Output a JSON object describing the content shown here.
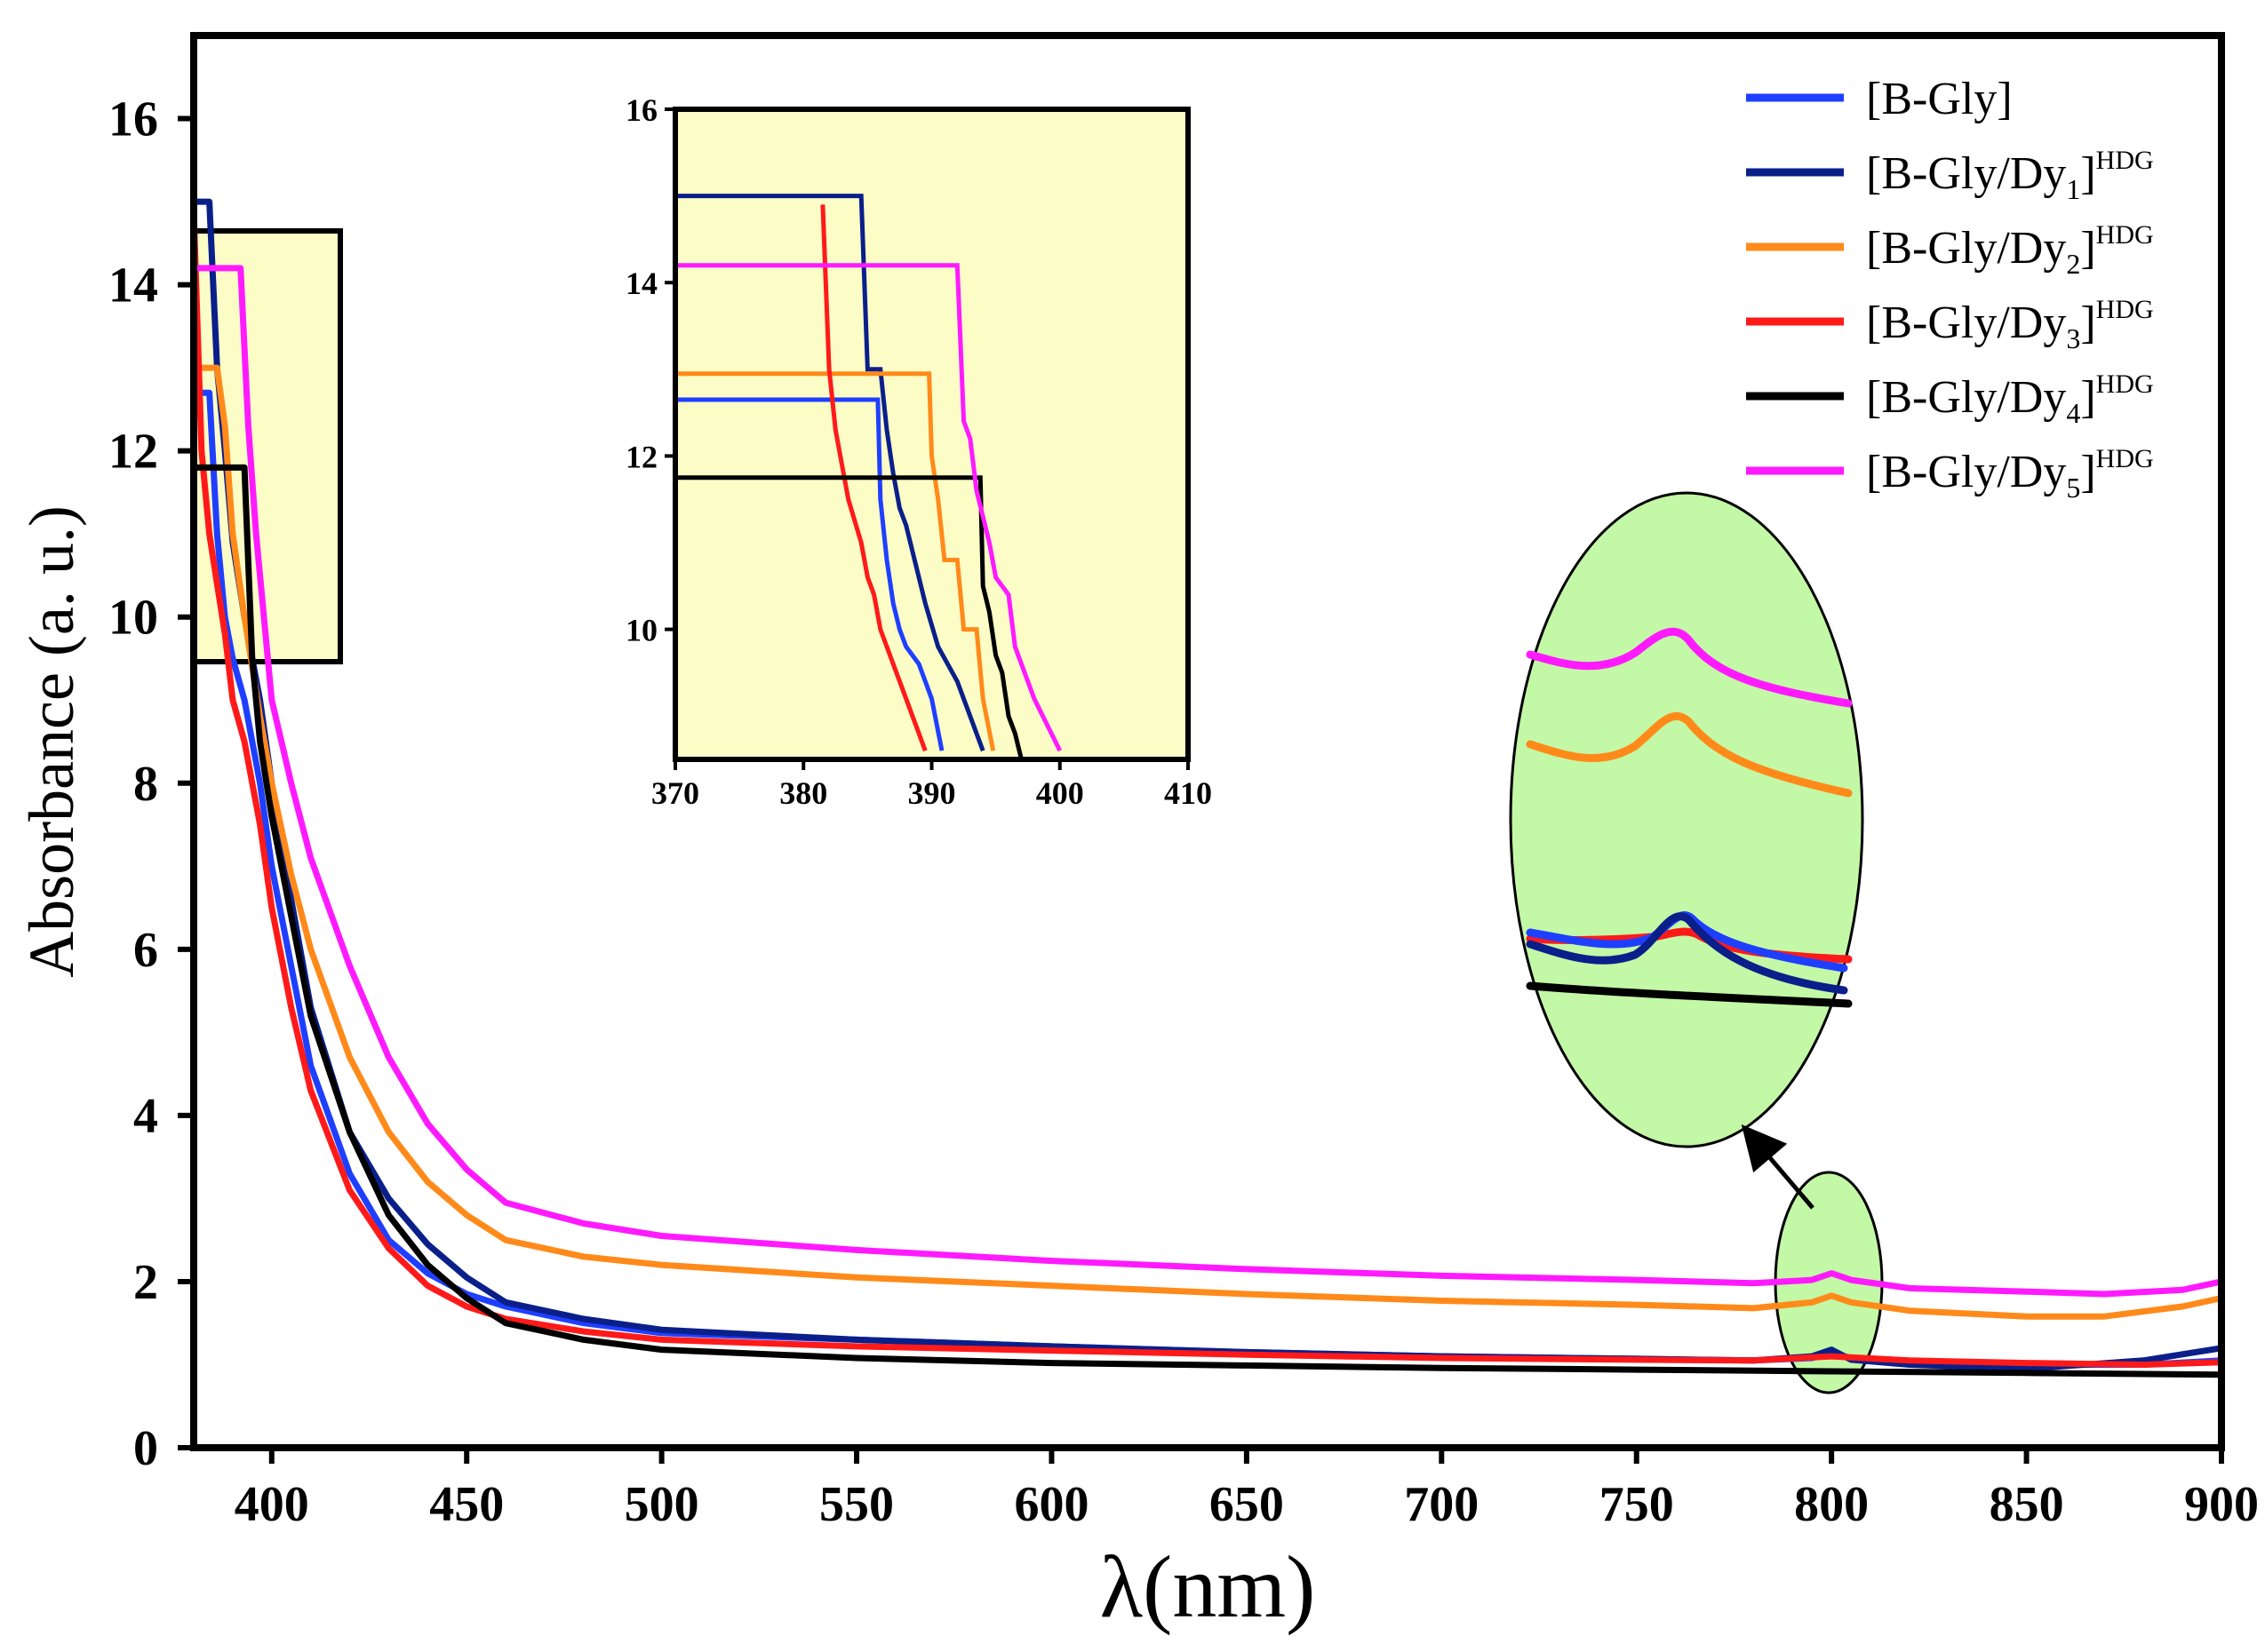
{
  "chart_data": {
    "type": "line",
    "title": "",
    "xlabel": "λ(nm)",
    "ylabel": "Absorbance (a. u.)",
    "xlim": [
      380,
      900
    ],
    "ylim": [
      0,
      17
    ],
    "x_ticks": [
      400,
      450,
      500,
      550,
      600,
      650,
      700,
      750,
      800,
      850,
      900
    ],
    "y_ticks": [
      0,
      2,
      4,
      6,
      8,
      10,
      12,
      14,
      16
    ],
    "grid": false,
    "legend_position": "top-right",
    "series": [
      {
        "name": "[B-Gly]",
        "base": "[B-Gly",
        "sub": "",
        "sup": "",
        "color": "#1f3fff",
        "x": [
          380,
          384,
          386,
          388,
          390,
          393,
          397,
          400,
          405,
          410,
          420,
          430,
          440,
          450,
          460,
          480,
          500,
          550,
          600,
          650,
          700,
          750,
          780,
          795,
          800,
          805,
          820,
          850,
          880,
          900
        ],
        "y": [
          12.7,
          12.7,
          11.0,
          10.0,
          9.5,
          9.0,
          8.0,
          7.0,
          5.8,
          4.6,
          3.3,
          2.5,
          2.1,
          1.85,
          1.7,
          1.5,
          1.38,
          1.3,
          1.22,
          1.15,
          1.1,
          1.07,
          1.05,
          1.08,
          1.14,
          1.08,
          1.04,
          1.0,
          1.0,
          1.05
        ]
      },
      {
        "name": "[B-Gly/Dy1]HDG",
        "base": "[B-Gly/Dy",
        "sub": "1",
        "sup": "HDG",
        "color": "#0a1f8a",
        "x": [
          380,
          384,
          386,
          388,
          390,
          393,
          397,
          400,
          405,
          410,
          420,
          430,
          440,
          450,
          455,
          460,
          480,
          500,
          550,
          600,
          650,
          700,
          750,
          780,
          795,
          800,
          805,
          820,
          850,
          880,
          900
        ],
        "y": [
          15.0,
          15.0,
          13.0,
          12.0,
          10.9,
          10.0,
          9.0,
          8.0,
          6.6,
          5.3,
          3.8,
          3.0,
          2.45,
          2.05,
          1.9,
          1.75,
          1.55,
          1.42,
          1.3,
          1.22,
          1.15,
          1.1,
          1.07,
          1.05,
          1.1,
          1.18,
          1.06,
          1.0,
          0.95,
          1.05,
          1.2
        ]
      },
      {
        "name": "[B-Gly/Dy2]HDG",
        "base": "[B-Gly/Dy",
        "sub": "2",
        "sup": "HDG",
        "color": "#ff8a1a",
        "x": [
          380,
          386,
          388,
          390,
          393,
          397,
          400,
          405,
          410,
          420,
          430,
          440,
          450,
          460,
          480,
          500,
          550,
          600,
          650,
          700,
          750,
          780,
          795,
          800,
          805,
          820,
          850,
          870,
          890,
          900
        ],
        "y": [
          13.0,
          13.0,
          12.3,
          11.0,
          10.0,
          8.8,
          8.0,
          6.9,
          6.0,
          4.7,
          3.8,
          3.2,
          2.8,
          2.5,
          2.3,
          2.2,
          2.05,
          1.95,
          1.85,
          1.77,
          1.72,
          1.68,
          1.75,
          1.83,
          1.75,
          1.65,
          1.58,
          1.58,
          1.7,
          1.8
        ]
      },
      {
        "name": "[B-Gly/Dy3]HDG",
        "base": "[B-Gly/Dy",
        "sub": "3",
        "sup": "HDG",
        "color": "#ff1a1a",
        "x": [
          380,
          382,
          384,
          386,
          388,
          390,
          393,
          397,
          400,
          405,
          410,
          420,
          430,
          440,
          450,
          460,
          480,
          500,
          550,
          600,
          650,
          700,
          750,
          780,
          800,
          820,
          850,
          880,
          900
        ],
        "y": [
          14.9,
          12.0,
          11.0,
          10.4,
          9.8,
          9.0,
          8.5,
          7.5,
          6.5,
          5.3,
          4.3,
          3.1,
          2.4,
          1.95,
          1.7,
          1.55,
          1.4,
          1.3,
          1.22,
          1.17,
          1.12,
          1.08,
          1.06,
          1.05,
          1.1,
          1.05,
          1.02,
          1.0,
          1.03
        ]
      },
      {
        "name": "[B-Gly/Dy4]HDG",
        "base": "[B-Gly/Dy",
        "sub": "4",
        "sup": "HDG",
        "color": "#000000",
        "x": [
          380,
          393,
          395,
          397,
          400,
          405,
          410,
          420,
          430,
          440,
          450,
          460,
          480,
          500,
          550,
          600,
          650,
          700,
          750,
          800,
          850,
          900
        ],
        "y": [
          11.8,
          11.8,
          9.5,
          8.5,
          7.6,
          6.4,
          5.2,
          3.8,
          2.8,
          2.2,
          1.8,
          1.5,
          1.3,
          1.18,
          1.08,
          1.02,
          0.99,
          0.96,
          0.94,
          0.92,
          0.9,
          0.88
        ]
      },
      {
        "name": "[B-Gly/Dy5]HDG",
        "base": "[B-Gly/Dy",
        "sub": "5",
        "sup": "HDG",
        "color": "#ff1aff",
        "x": [
          380,
          392,
          394,
          396,
          398,
          400,
          405,
          410,
          420,
          430,
          440,
          450,
          455,
          460,
          480,
          500,
          550,
          600,
          650,
          700,
          750,
          780,
          795,
          800,
          805,
          820,
          850,
          870,
          890,
          900
        ],
        "y": [
          14.2,
          14.2,
          12.3,
          11.0,
          10.0,
          9.0,
          8.0,
          7.1,
          5.8,
          4.7,
          3.9,
          3.35,
          3.15,
          2.95,
          2.7,
          2.55,
          2.38,
          2.25,
          2.15,
          2.07,
          2.02,
          1.98,
          2.02,
          2.1,
          2.02,
          1.92,
          1.88,
          1.85,
          1.9,
          2.0
        ]
      }
    ],
    "inset": {
      "xlim": [
        370,
        410
      ],
      "ylim": [
        8.5,
        16
      ],
      "x_ticks": [
        370,
        380,
        390,
        400,
        410
      ],
      "y_ticks": [
        10,
        12,
        14,
        16
      ],
      "series": [
        {
          "name": "[B-Gly]",
          "color": "#1f3fff",
          "x": [
            370,
            385.8,
            386,
            386.5,
            387,
            387.5,
            388,
            389,
            390,
            390.8
          ],
          "y": [
            12.65,
            12.65,
            11.5,
            10.8,
            10.3,
            10.0,
            9.8,
            9.6,
            9.2,
            8.6
          ]
        },
        {
          "name": "[B-Gly/Dy1]HDG",
          "color": "#0a1f8a",
          "x": [
            370,
            384.5,
            385,
            386,
            386.5,
            387,
            387.5,
            388,
            388.5,
            389.5,
            390.5,
            392,
            394
          ],
          "y": [
            15.0,
            15.0,
            13.0,
            13.0,
            12.3,
            11.8,
            11.4,
            11.2,
            10.9,
            10.3,
            9.8,
            9.4,
            8.6
          ]
        },
        {
          "name": "[B-Gly/Dy2]HDG",
          "color": "#ff8a1a",
          "x": [
            370,
            389.8,
            390,
            390.5,
            391,
            392,
            392.5,
            393.5,
            394,
            394.8
          ],
          "y": [
            12.95,
            12.95,
            12.0,
            11.5,
            10.8,
            10.8,
            10.0,
            10.0,
            9.2,
            8.6
          ]
        },
        {
          "name": "[B-Gly/Dy3]HDG",
          "color": "#ff1a1a",
          "x": [
            381.5,
            382,
            382.5,
            383.5,
            384.5,
            385,
            385.5,
            386,
            387,
            388,
            389.5
          ],
          "y": [
            14.9,
            13.0,
            12.3,
            11.5,
            11.0,
            10.6,
            10.4,
            10.0,
            9.6,
            9.2,
            8.6
          ]
        },
        {
          "name": "[B-Gly/Dy4]HDG",
          "color": "#000000",
          "x": [
            370,
            393.8,
            394,
            394.5,
            395,
            395.5,
            396,
            396.5,
            397
          ],
          "y": [
            11.75,
            11.75,
            10.5,
            10.2,
            9.7,
            9.5,
            9.0,
            8.8,
            8.5
          ]
        },
        {
          "name": "[B-Gly/Dy5]HDG",
          "color": "#ff1aff",
          "x": [
            370,
            392,
            392.5,
            393,
            393.5,
            394,
            394.5,
            395,
            396,
            396.5,
            398,
            400
          ],
          "y": [
            14.2,
            14.2,
            12.4,
            12.2,
            11.6,
            11.3,
            11.0,
            10.6,
            10.4,
            9.8,
            9.2,
            8.6
          ]
        }
      ]
    }
  }
}
